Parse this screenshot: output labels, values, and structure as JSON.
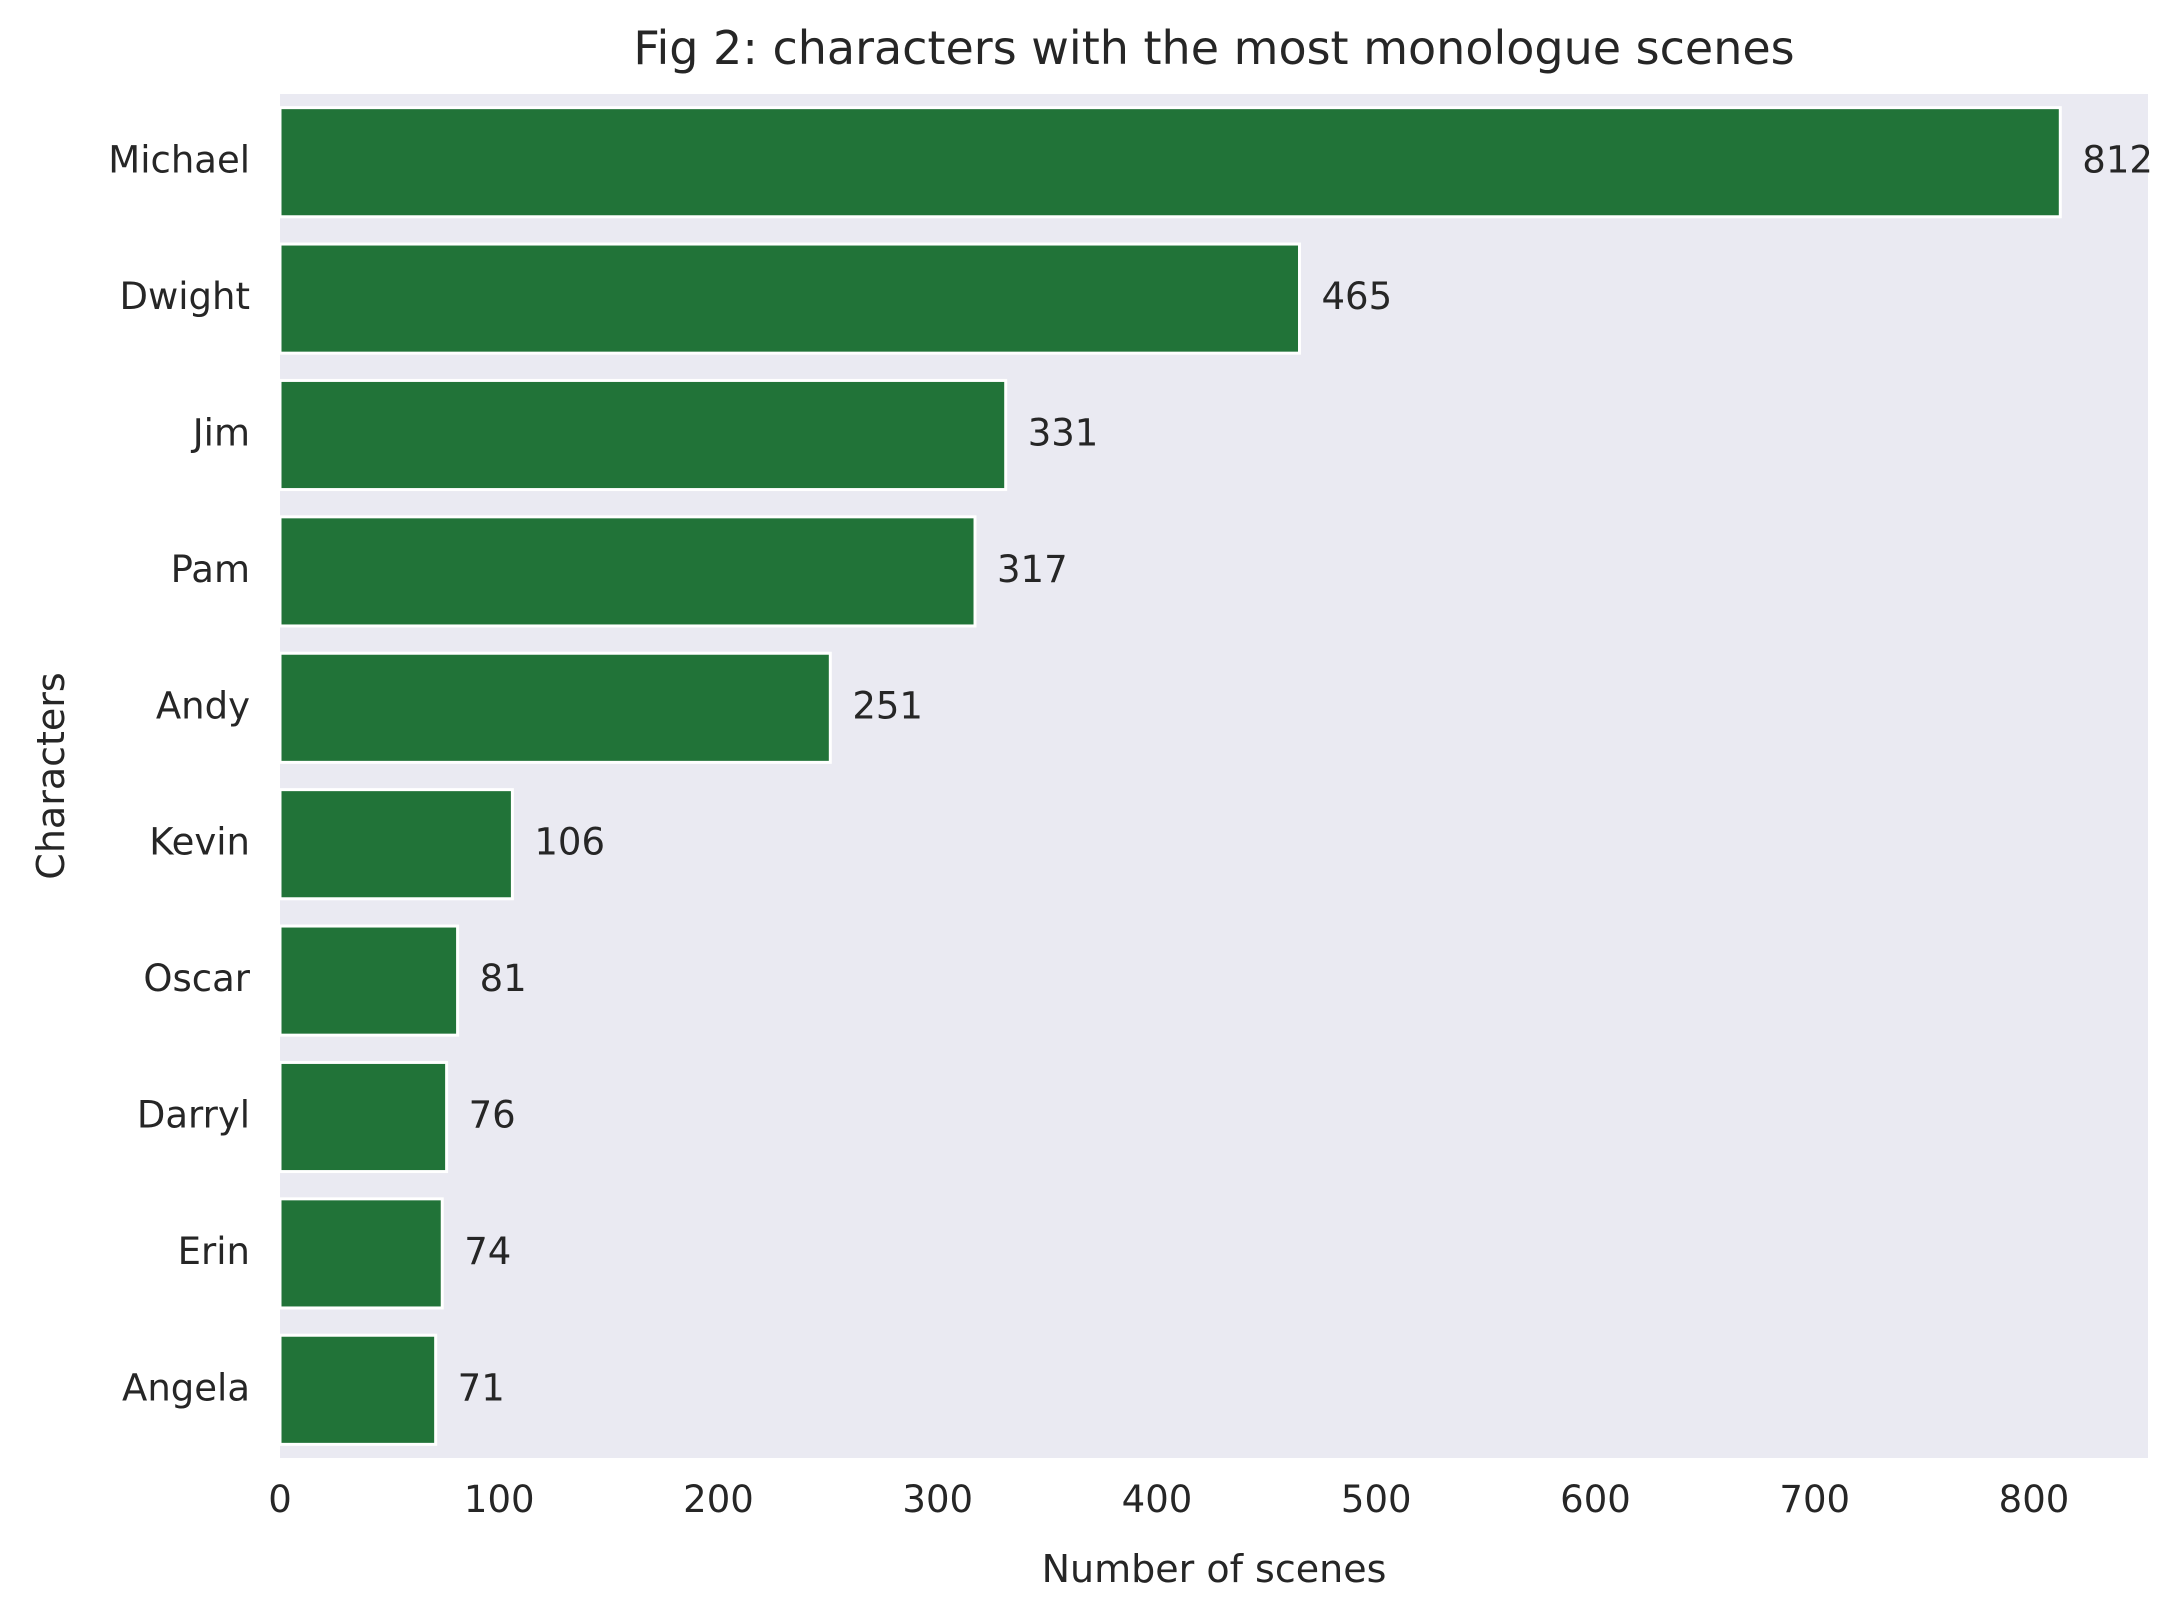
{
  "chart_data": {
    "type": "bar",
    "orientation": "horizontal",
    "title": "Fig 2: characters with the most monologue scenes",
    "xlabel": "Number of scenes",
    "ylabel": "Characters",
    "categories": [
      "Michael",
      "Dwight",
      "Jim",
      "Pam",
      "Andy",
      "Kevin",
      "Oscar",
      "Darryl",
      "Erin",
      "Angela"
    ],
    "values": [
      812,
      465,
      331,
      317,
      251,
      106,
      81,
      76,
      74,
      71
    ],
    "xlim": [
      0,
      852
    ],
    "xticks": [
      0,
      100,
      200,
      300,
      400,
      500,
      600,
      700,
      800
    ],
    "grid": false,
    "legend": "none",
    "colors": {
      "bar": "#217338",
      "bar_edge": "#ffffff",
      "plot_background": "#eaeaf2",
      "text": "#262626"
    }
  }
}
